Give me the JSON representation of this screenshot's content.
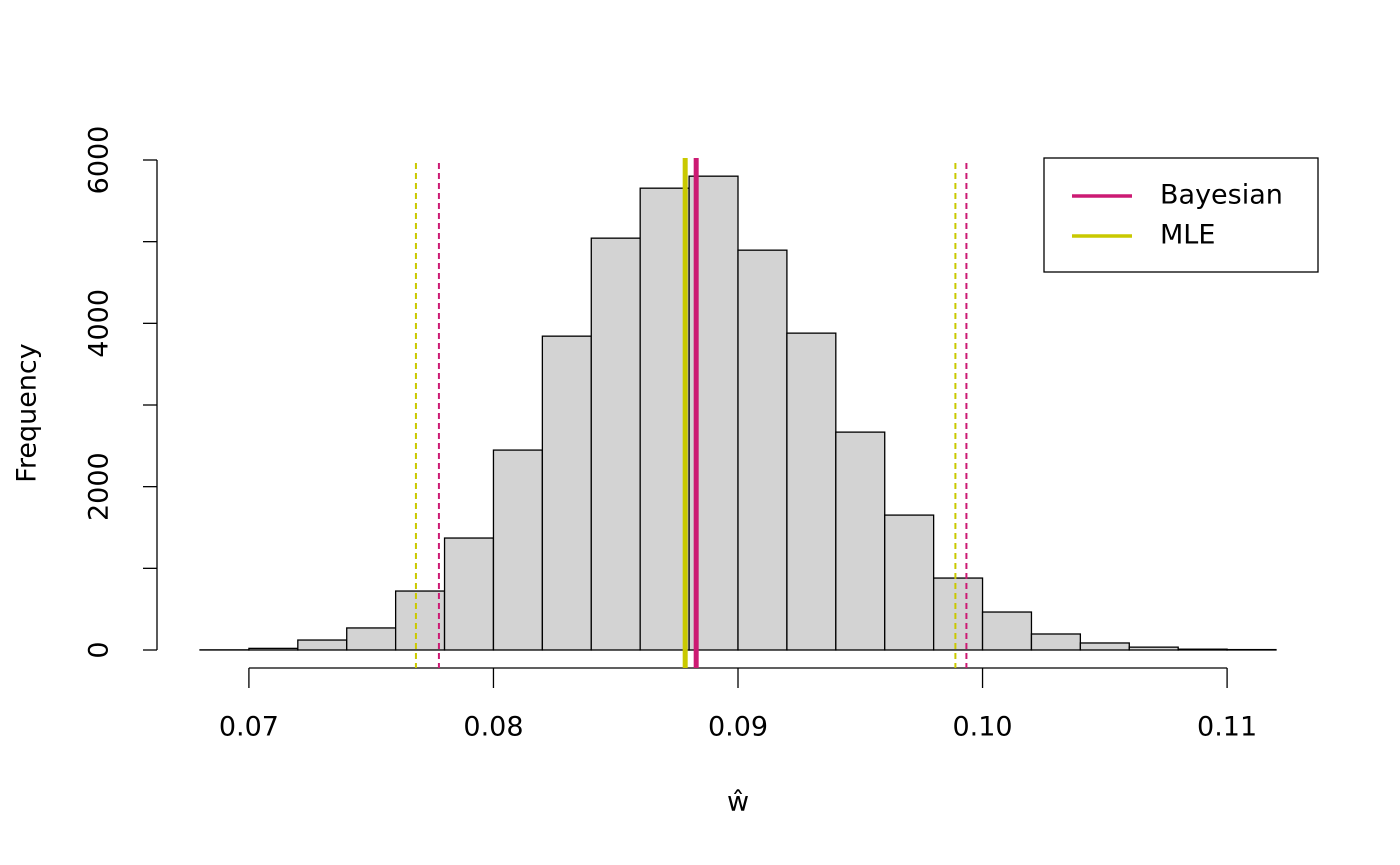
{
  "chart_data": {
    "type": "histogram",
    "xlabel": "ŵ",
    "ylabel": "Frequency",
    "bins": [
      0.068,
      0.07,
      0.072,
      0.074,
      0.076,
      0.078,
      0.08,
      0.082,
      0.084,
      0.086,
      0.088,
      0.09,
      0.092,
      0.094,
      0.096,
      0.098,
      0.1,
      0.102,
      0.104,
      0.106,
      0.108,
      0.11,
      0.112
    ],
    "values": [
      2,
      20,
      122,
      270,
      722,
      1371,
      2448,
      3843,
      5043,
      5655,
      5802,
      4896,
      3880,
      2668,
      1652,
      881,
      465,
      196,
      86,
      35,
      10,
      5
    ],
    "color": "#d3d3d3",
    "xlim": [
      0.068,
      0.112
    ],
    "xticks": [
      0.07,
      0.08,
      0.09,
      {
        "value": 0.1,
        "label": "0.10"
      },
      0.11
    ],
    "ylim": [
      0,
      6000
    ],
    "yticks": [
      0,
      {
        "value": 1000,
        "label": null
      },
      2000,
      {
        "value": 3000,
        "label": null
      },
      4000,
      {
        "value": 5000,
        "label": null
      },
      6000
    ],
    "legend": "top-right",
    "series": [
      {
        "name": "Bayesian",
        "color": "#cc1a73",
        "estimate": 0.08829,
        "interval": [
          0.07777,
          0.09934
        ]
      },
      {
        "name": "MLE",
        "color": "#c9c900",
        "estimate": 0.08784,
        "interval": [
          0.07683,
          0.09889
        ]
      }
    ]
  }
}
